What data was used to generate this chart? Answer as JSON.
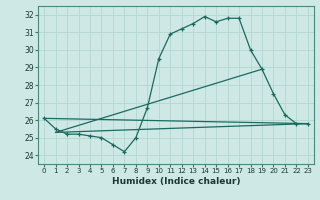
{
  "title": "",
  "xlabel": "Humidex (Indice chaleur)",
  "ylabel": "",
  "bg_color": "#cde8e5",
  "grid_color": "#b8d8d5",
  "line_color": "#1a6b5e",
  "xlim": [
    -0.5,
    23.5
  ],
  "ylim": [
    23.5,
    32.5
  ],
  "xticks": [
    0,
    1,
    2,
    3,
    4,
    5,
    6,
    7,
    8,
    9,
    10,
    11,
    12,
    13,
    14,
    15,
    16,
    17,
    18,
    19,
    20,
    21,
    22,
    23
  ],
  "yticks": [
    24,
    25,
    26,
    27,
    28,
    29,
    30,
    31,
    32
  ],
  "line1_x": [
    0,
    1,
    2,
    3,
    4,
    5,
    6,
    7,
    8,
    9,
    10,
    11,
    12,
    13,
    14,
    15,
    16,
    17,
    18,
    19,
    20,
    21,
    22,
    23
  ],
  "line1_y": [
    26.1,
    25.5,
    25.2,
    25.2,
    25.1,
    25.0,
    24.6,
    24.2,
    25.0,
    26.7,
    29.5,
    30.9,
    31.2,
    31.5,
    31.9,
    31.6,
    31.8,
    31.8,
    30.0,
    28.9,
    27.5,
    26.3,
    25.8,
    25.8
  ],
  "line2_x": [
    1,
    23
  ],
  "line2_y": [
    25.3,
    25.8
  ],
  "line3_x": [
    1,
    19
  ],
  "line3_y": [
    25.3,
    28.9
  ],
  "line4_x": [
    0,
    23
  ],
  "line4_y": [
    26.1,
    25.8
  ]
}
